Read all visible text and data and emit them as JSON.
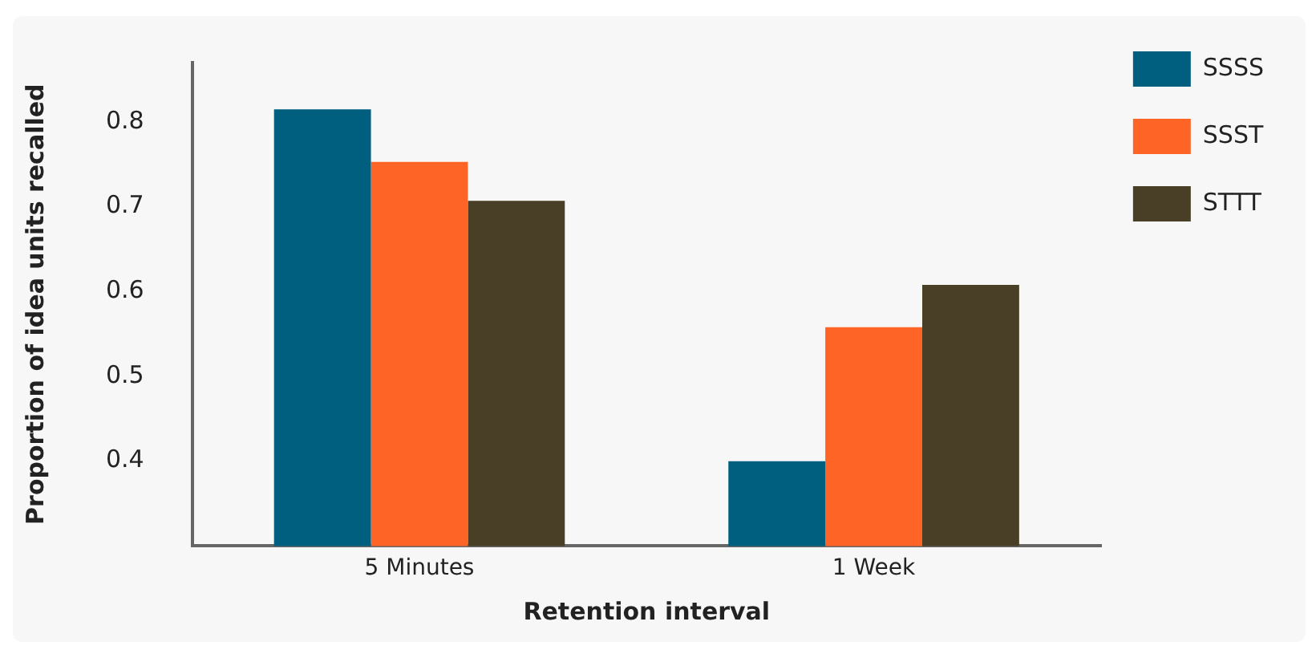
{
  "chart_data": {
    "type": "bar",
    "xlabel": "Retention interval",
    "ylabel": "Proportion of idea units recalled",
    "categories": [
      "5 Minutes",
      "1 Week"
    ],
    "series": [
      {
        "name": "SSSS",
        "color": "#005f7f",
        "values": [
          0.815,
          0.4
        ]
      },
      {
        "name": "SSST",
        "color": "#fd6426",
        "values": [
          0.753,
          0.558
        ]
      },
      {
        "name": "STTT",
        "color": "#483f26",
        "values": [
          0.707,
          0.608
        ]
      }
    ],
    "ylim": [
      0.3,
      0.87
    ],
    "yticks": [
      0.4,
      0.5,
      0.6,
      0.7,
      0.8
    ],
    "grid": false,
    "legend": "top right"
  }
}
